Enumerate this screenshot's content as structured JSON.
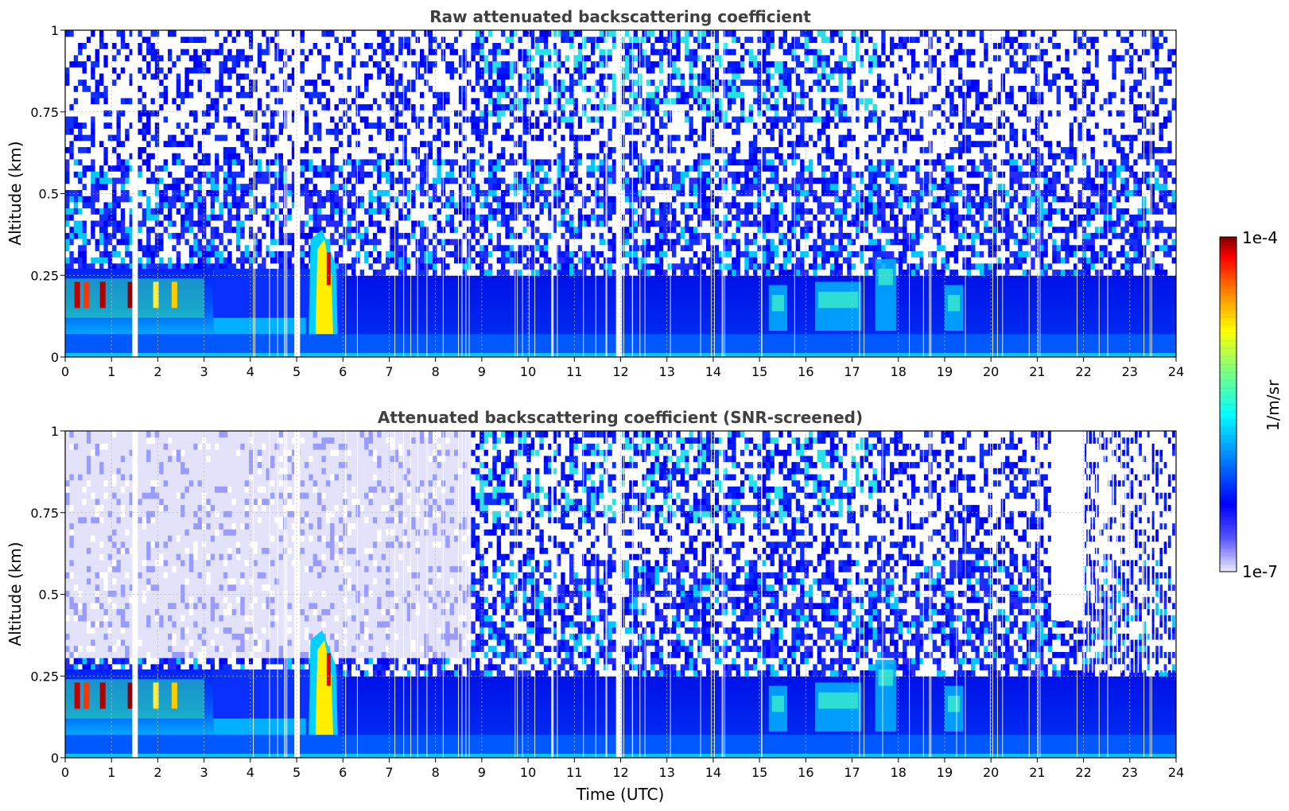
{
  "chart_data": [
    {
      "type": "heatmap",
      "title": "Raw attenuated backscattering coefficient",
      "xlabel": "",
      "ylabel": "Altitude (km)",
      "xlim": [
        0,
        24
      ],
      "ylim": [
        0,
        1
      ],
      "xticks": [
        0,
        1,
        2,
        3,
        4,
        5,
        6,
        7,
        8,
        9,
        10,
        11,
        12,
        13,
        14,
        15,
        16,
        17,
        18,
        19,
        20,
        21,
        22,
        23,
        24
      ],
      "yticks": [
        "0",
        "0.25",
        "0.5",
        "0.75",
        "1"
      ],
      "grid": true,
      "features": [
        {
          "x": [
            0,
            3.2
          ],
          "y_top": 0.27,
          "description_level": "high"
        },
        {
          "x": [
            5.2,
            5.9
          ],
          "y_top": 0.38,
          "description_level": "peak"
        },
        {
          "x": [
            16.2,
            17.2
          ],
          "y_top": 0.23,
          "description_level": "moderate"
        },
        {
          "x": [
            17.6,
            17.9
          ],
          "y_top": 0.3,
          "description_level": "moderate"
        }
      ]
    },
    {
      "type": "heatmap",
      "title": "Attenuated backscattering coefficient (SNR-screened)",
      "xlabel": "Time (UTC)",
      "ylabel": "Altitude (km)",
      "xlim": [
        0,
        24
      ],
      "ylim": [
        0,
        1
      ],
      "xticks": [
        0,
        1,
        2,
        3,
        4,
        5,
        6,
        7,
        8,
        9,
        10,
        11,
        12,
        13,
        14,
        15,
        16,
        17,
        18,
        19,
        20,
        21,
        22,
        23,
        24
      ],
      "yticks": [
        "0",
        "0.25",
        "0.5",
        "0.75",
        "1"
      ],
      "grid": true
    }
  ],
  "colorbar": {
    "max_label": "1e-4",
    "min_label": "1e-7",
    "unit_label": "1/m/sr",
    "colormap": "jet",
    "colors": [
      "#ececfb",
      "#0000ff",
      "#00aaff",
      "#00ffff",
      "#7fff7f",
      "#ffff00",
      "#ff7f00",
      "#ff0000",
      "#800000"
    ]
  }
}
